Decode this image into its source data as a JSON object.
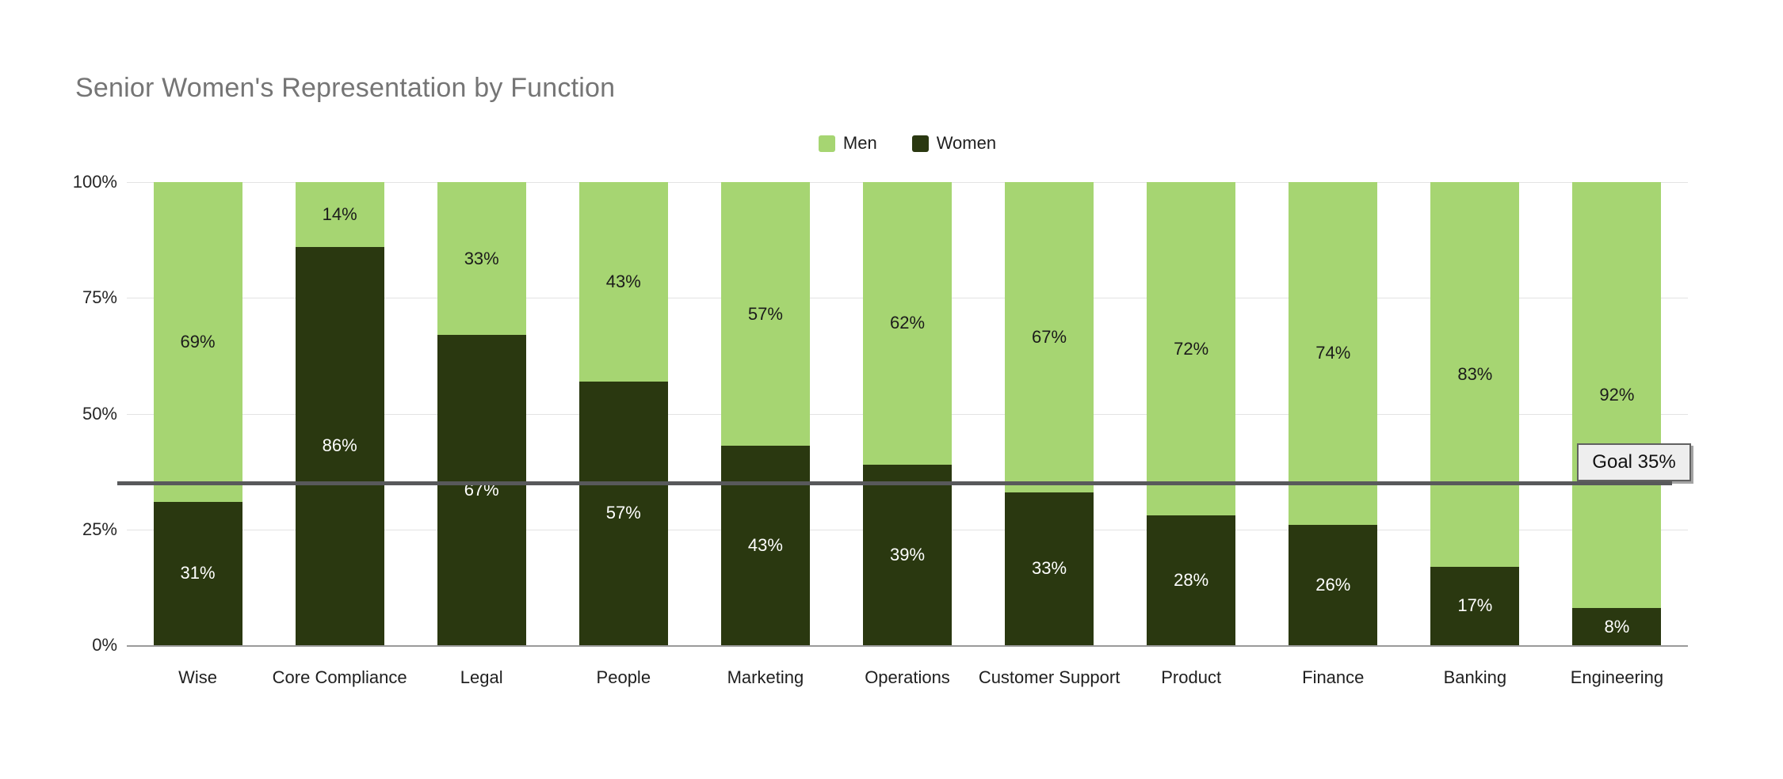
{
  "chart_data": {
    "type": "bar",
    "variant": "stacked-100",
    "title": "Senior Women's Representation by Function",
    "title_color": "#757575",
    "legend_position": "top",
    "grid": true,
    "value_suffix": "%",
    "categories": [
      "Wise",
      "Core Compliance",
      "Legal",
      "People",
      "Marketing",
      "Operations",
      "Customer Support",
      "Product",
      "Finance",
      "Banking",
      "Engineering"
    ],
    "series": [
      {
        "name": "Men",
        "color": "#a6d572",
        "label_color": "#1b1b1b",
        "values": [
          69,
          14,
          33,
          43,
          57,
          62,
          67,
          72,
          74,
          83,
          92
        ]
      },
      {
        "name": "Women",
        "color": "#2a3810",
        "label_color": "#ffffff",
        "values": [
          31,
          86,
          67,
          57,
          43,
          39,
          33,
          28,
          26,
          17,
          8
        ]
      }
    ],
    "stack_order_bottom_to_top": [
      "Women",
      "Men"
    ],
    "y_axis": {
      "range": [
        0,
        100
      ],
      "tick_values": [
        0,
        25,
        50,
        75,
        100
      ],
      "tick_labels": [
        "0%",
        "25%",
        "50%",
        "75%",
        "100%"
      ],
      "tick_color": "#262626",
      "grid_color": "#e3e3e3",
      "baseline_color": "#9a9a9a"
    },
    "goal_line": {
      "label": "Goal 35%",
      "value": 35,
      "line_color": "#58595b",
      "box_bg": "#eeeeee",
      "box_border": "#616161",
      "text_color": "#111111"
    }
  }
}
